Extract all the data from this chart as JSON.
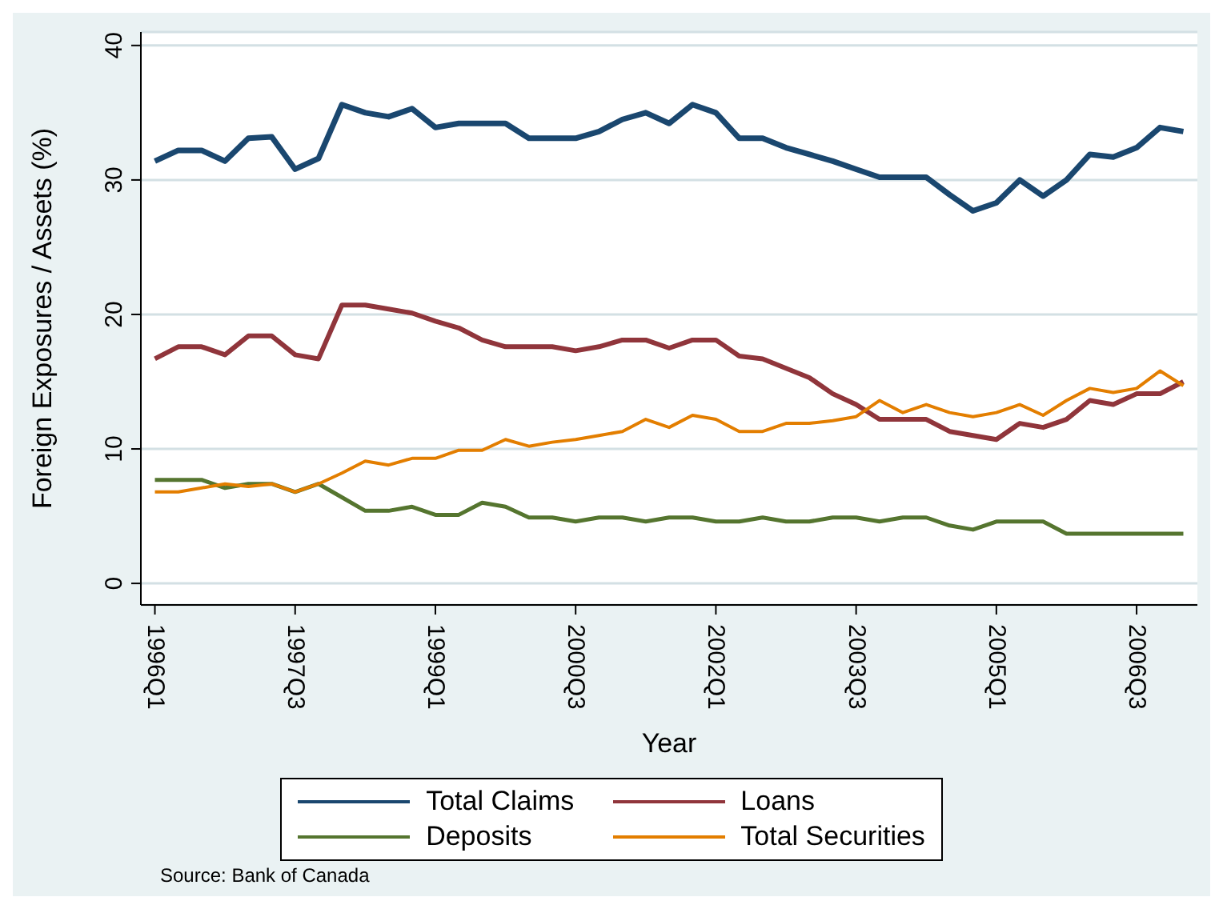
{
  "chart_data": {
    "type": "line",
    "xlabel": "Year",
    "ylabel": "Foreign Exposures / Assets (%)",
    "categories": [
      "1996Q1",
      null,
      null,
      null,
      null,
      null,
      "1997Q3",
      null,
      null,
      null,
      null,
      null,
      "1999Q1",
      null,
      null,
      null,
      null,
      null,
      "2000Q3",
      null,
      null,
      null,
      null,
      null,
      "2002Q1",
      null,
      null,
      null,
      null,
      null,
      "2003Q3",
      null,
      null,
      null,
      null,
      null,
      "2005Q1",
      null,
      null,
      null,
      null,
      null,
      "2006Q3",
      null,
      null
    ],
    "series": [
      {
        "name": "Total Claims",
        "color": "#1a476f",
        "values": [
          31.4,
          32.2,
          32.2,
          31.4,
          33.1,
          33.2,
          30.8,
          31.6,
          35.6,
          35.0,
          34.7,
          35.3,
          33.9,
          34.2,
          34.2,
          34.2,
          33.1,
          33.1,
          33.1,
          33.6,
          34.5,
          35.0,
          34.2,
          35.6,
          35.0,
          33.1,
          33.1,
          32.4,
          31.9,
          31.4,
          30.8,
          30.2,
          30.2,
          30.2,
          28.9,
          27.7,
          28.3,
          30.0,
          28.8,
          30.0,
          31.9,
          31.7,
          32.4,
          33.9,
          33.6
        ]
      },
      {
        "name": "Loans",
        "color": "#90353b",
        "values": [
          16.7,
          17.6,
          17.6,
          17.0,
          18.4,
          18.4,
          17.0,
          16.7,
          20.7,
          20.7,
          20.4,
          20.1,
          19.5,
          19.0,
          18.1,
          17.6,
          17.6,
          17.6,
          17.3,
          17.6,
          18.1,
          18.1,
          17.5,
          18.1,
          18.1,
          16.9,
          16.7,
          16.0,
          15.3,
          14.1,
          13.3,
          12.2,
          12.2,
          12.2,
          11.3,
          11.0,
          10.7,
          11.9,
          11.6,
          12.2,
          13.6,
          13.3,
          14.1,
          14.1,
          15.0
        ]
      },
      {
        "name": "Deposits",
        "color": "#55752f",
        "values": [
          7.7,
          7.7,
          7.7,
          7.1,
          7.4,
          7.4,
          6.8,
          7.4,
          6.4,
          5.4,
          5.4,
          5.7,
          5.1,
          5.1,
          6.0,
          5.7,
          4.9,
          4.9,
          4.6,
          4.9,
          4.9,
          4.6,
          4.9,
          4.9,
          4.6,
          4.6,
          4.9,
          4.6,
          4.6,
          4.9,
          4.9,
          4.6,
          4.9,
          4.9,
          4.3,
          4.0,
          4.6,
          4.6,
          4.6,
          3.7,
          3.7,
          3.7,
          3.7,
          3.7,
          3.7
        ]
      },
      {
        "name": "Total Securities",
        "color": "#e37e00",
        "values": [
          6.8,
          6.8,
          7.1,
          7.4,
          7.2,
          7.4,
          6.8,
          7.4,
          8.2,
          9.1,
          8.8,
          9.3,
          9.3,
          9.9,
          9.9,
          10.7,
          10.2,
          10.5,
          10.7,
          11.0,
          11.3,
          12.2,
          11.6,
          12.5,
          12.2,
          11.3,
          11.3,
          11.9,
          11.9,
          12.1,
          12.4,
          13.6,
          12.7,
          13.3,
          12.7,
          12.4,
          12.7,
          13.3,
          12.5,
          13.6,
          14.5,
          14.2,
          14.5,
          15.8,
          14.7
        ]
      }
    ],
    "ylim": [
      -1.6,
      41
    ],
    "yticks": [
      0,
      10,
      20,
      30,
      40
    ],
    "grid": "y",
    "legend": "bottom",
    "marker": "none",
    "line_style": "solid",
    "annotations": [
      "Source: Bank of Canada"
    ]
  }
}
